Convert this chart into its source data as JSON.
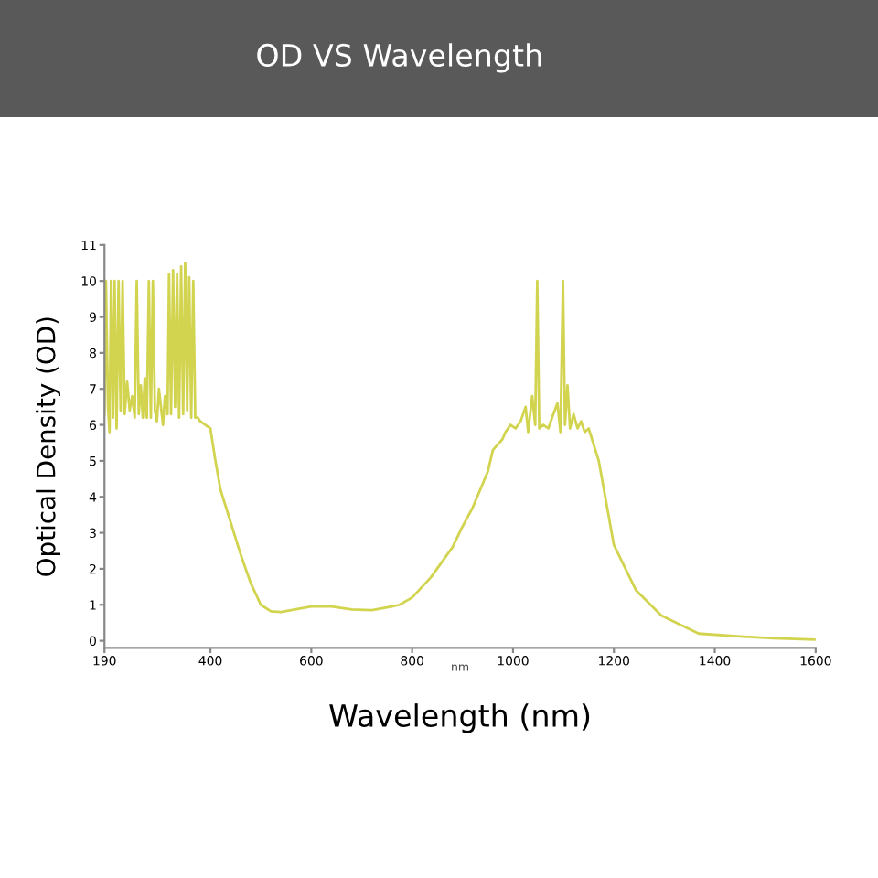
{
  "chart_data": {
    "type": "line",
    "title": "OD VS Wavelength",
    "xlabel": "Wavelength (nm)",
    "ylabel": "Optical Density (OD)",
    "annotations": [
      "nm"
    ],
    "xlim": [
      190,
      1600
    ],
    "xticks": [
      190,
      400,
      600,
      800,
      1000,
      1200,
      1400,
      1600
    ],
    "ylim": [
      -0.2,
      11
    ],
    "yticks": [
      0,
      1,
      2,
      3,
      4,
      5,
      6,
      7,
      8,
      9,
      10,
      11
    ],
    "grid": false,
    "legend": false,
    "series": [
      {
        "color": "#d2d450",
        "x": [
          190,
          193,
          197,
          200,
          203,
          207,
          210,
          214,
          218,
          222,
          226,
          230,
          235,
          240,
          245,
          250,
          254,
          258,
          262,
          266,
          270,
          274,
          278,
          282,
          286,
          290,
          294,
          298,
          302,
          306,
          310,
          315,
          318,
          322,
          326,
          330,
          334,
          338,
          342,
          346,
          350,
          354,
          358,
          362,
          366,
          370,
          375,
          380,
          390,
          400,
          410,
          420,
          440,
          460,
          480,
          500,
          520,
          540,
          560,
          600,
          640,
          680,
          720,
          760,
          775,
          800,
          837,
          880,
          899,
          920,
          950,
          960,
          979,
          985,
          995,
          1005,
          1015,
          1025,
          1030,
          1038,
          1044,
          1048,
          1052,
          1060,
          1070,
          1080,
          1088,
          1094,
          1099,
          1103,
          1108,
          1113,
          1120,
          1128,
          1135,
          1142,
          1150,
          1170,
          1200,
          1244,
          1294,
          1368,
          1450,
          1516,
          1600
        ],
        "values": [
          6.3,
          10,
          6.5,
          5.8,
          10,
          6.2,
          10,
          5.9,
          10,
          6.4,
          10,
          6.3,
          7.2,
          6.4,
          6.8,
          6.2,
          10,
          6.3,
          7.1,
          6.2,
          7.3,
          6.2,
          10,
          6.2,
          10,
          6.4,
          6.1,
          7.0,
          6.5,
          6.0,
          6.8,
          6.3,
          10.2,
          6.3,
          10.3,
          6.5,
          10.2,
          6.2,
          10.4,
          6.3,
          10.5,
          6.4,
          10.1,
          6.2,
          10,
          6.2,
          6.2,
          6.1,
          6.0,
          5.9,
          5.0,
          4.2,
          3.3,
          2.4,
          1.6,
          1.0,
          0.82,
          0.8,
          0.85,
          0.95,
          0.95,
          0.87,
          0.85,
          0.95,
          1.0,
          1.2,
          1.76,
          2.6,
          3.15,
          3.7,
          4.7,
          5.3,
          5.6,
          5.8,
          6.0,
          5.9,
          6.1,
          6.5,
          5.8,
          6.8,
          6.0,
          10,
          5.9,
          6.0,
          5.9,
          6.3,
          6.6,
          5.8,
          10,
          6.0,
          7.1,
          5.9,
          6.3,
          5.9,
          6.1,
          5.8,
          5.9,
          5.0,
          2.66,
          1.4,
          0.7,
          0.2,
          0.12,
          0.07,
          0.03
        ]
      }
    ]
  }
}
